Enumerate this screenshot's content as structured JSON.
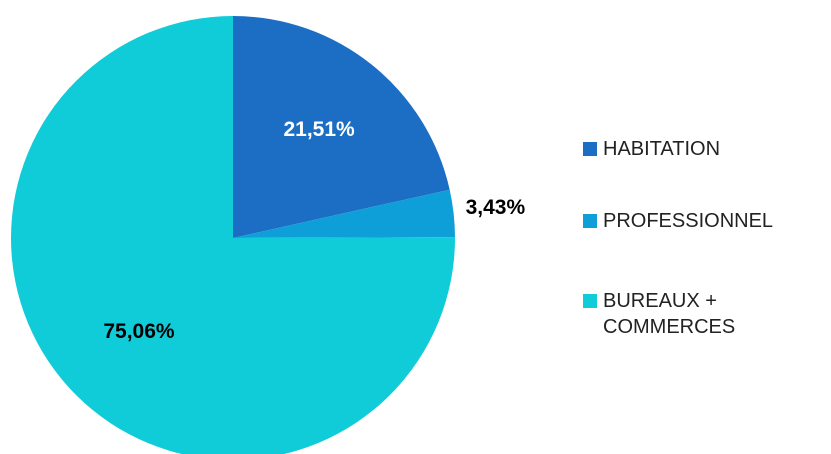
{
  "chart_data": {
    "type": "pie",
    "categories": [
      "HABITATION",
      "PROFESSIONNEL",
      "BUREAUX + COMMERCES"
    ],
    "values": [
      21.51,
      3.43,
      75.06
    ],
    "value_labels": [
      "21,51%",
      "3,43%",
      "75,06%"
    ],
    "colors": [
      "#1b6ec3",
      "#0f9fd8",
      "#10cbd8"
    ]
  }
}
